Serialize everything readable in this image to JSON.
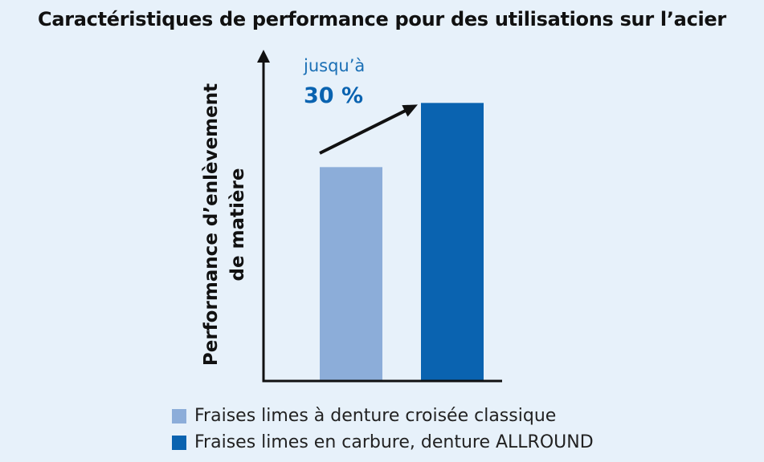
{
  "title": "Caractéristiques de performance pour des utilisations sur l’acier",
  "annotation": {
    "line1": "jusqu’à",
    "line2": "30 %"
  },
  "chart_data": {
    "type": "bar",
    "title": "Caractéristiques de performance pour des utilisations sur l’acier",
    "ylabel_lines": [
      "Performance d’enlèvement",
      "de matière"
    ],
    "xlabel": "",
    "categories": [
      "Fraises limes à denture croisée classique",
      "Fraises limes en carbure, denture ALLROUND"
    ],
    "values": [
      100,
      130
    ],
    "colors": [
      "#8cadd9",
      "#0a63b0"
    ],
    "ylim": [
      0,
      150
    ],
    "y_ticks_shown": false,
    "grid": false,
    "legend_position": "bottom",
    "annotation": "jusqu’à 30 %"
  },
  "legend": [
    {
      "label": "Fraises limes à denture croisée classique",
      "color": "#8cadd9"
    },
    {
      "label": "Fraises limes en carbure, denture ALLROUND",
      "color": "#0a63b0"
    }
  ],
  "colors": {
    "background": "#e7f1fa",
    "axis": "#111111",
    "annotation_text": "#1a6fb5",
    "annotation_value": "#0a63b0"
  }
}
